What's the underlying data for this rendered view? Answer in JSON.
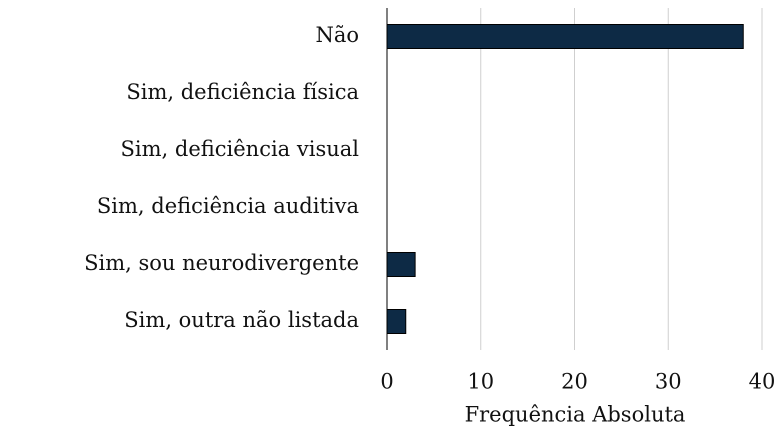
{
  "chart_data": {
    "type": "bar",
    "orientation": "horizontal",
    "categories": [
      "Não",
      "Sim, deficiência física",
      "Sim, deficiência visual",
      "Sim, deficiência auditiva",
      "Sim, sou neurodivergente",
      "Sim, outra não listada"
    ],
    "values": [
      38,
      0,
      0,
      0,
      3,
      2
    ],
    "color": "#0d2a45",
    "xlabel": "Frequência Absoluta",
    "xlim": [
      0,
      40
    ],
    "xticks": [
      0,
      10,
      20,
      30,
      40
    ],
    "grid": true
  }
}
